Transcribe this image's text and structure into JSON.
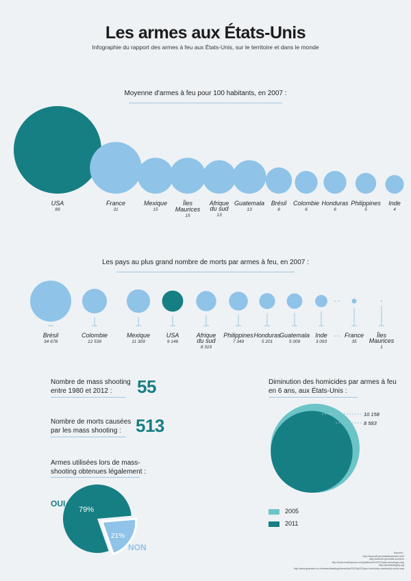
{
  "header": {
    "title": "Les armes aux États-Unis",
    "subtitle": "Infographie du rapport des armes à feu aux États-Unis, sur le territoire et dans le monde"
  },
  "colors": {
    "teal": "#167f83",
    "light_blue": "#8fc3e8",
    "light_teal": "#6cc4c7",
    "rule": "#9cc6e0"
  },
  "sources": {
    "label": "Sources :",
    "lines": [
      "http://www.atf.gov/statistics/index.html",
      "http://www.fbi.gov/stats-services",
      "http://www.motherjones.com/politics/2012/07/mass-shootings-map",
      "http://publicintegrity.org",
      "http://www.guardian.co.uk/news/datablog/interactive/2012/jul/22/gun-homicides-ownership-world-map"
    ]
  },
  "chart_data": [
    {
      "type": "bubble",
      "title": "Moyenne d'armes à feu pour 100 habitants, en 2007 :",
      "categories": [
        "USA",
        "France",
        "Mexique",
        "Îles Maurices",
        "Afrique du sud",
        "Guatemala",
        "Brésil",
        "Colombie",
        "Honduras",
        "Philippines",
        "Inde"
      ],
      "display_values": [
        "89",
        "31",
        "15",
        "15",
        "13",
        "13",
        "8",
        "6",
        "6",
        "5",
        "4"
      ],
      "values": [
        89,
        31,
        15,
        15,
        13,
        13,
        8,
        6,
        6,
        5,
        4
      ],
      "highlight": "USA"
    },
    {
      "type": "bubble",
      "title": "Les pays au plus grand nombre de morts par armes à feu, en 2007 :",
      "categories": [
        "Brésil",
        "Colombie",
        "Mexique",
        "USA",
        "Afrique du sud",
        "Philippines",
        "Honduras",
        "Guatemala",
        "Inde",
        "France",
        "Îles Maurices"
      ],
      "display_values": [
        "34 678",
        "12 539",
        "11 309",
        "9 146",
        "8 319",
        "7 349",
        "5 201",
        "5 009",
        "3 093",
        "35",
        "1"
      ],
      "values": [
        34678,
        12539,
        11309,
        9146,
        8319,
        7349,
        5201,
        5009,
        3093,
        35,
        1
      ],
      "highlight": "USA"
    },
    {
      "type": "pie",
      "title": "Armes utilisées lors de mass-shooting obtenues légalement :",
      "categories": [
        "OUI",
        "NON"
      ],
      "values": [
        79,
        21
      ],
      "display_values": [
        "79%",
        "21%"
      ]
    },
    {
      "type": "bubble",
      "title": "Diminution des homicides par armes à feu en 6 ans, aux États-Unis :",
      "series": [
        {
          "name": "2005",
          "values": [
            10158
          ]
        },
        {
          "name": "2011",
          "values": [
            8583
          ]
        }
      ],
      "display_values": [
        "10 158",
        "8 583"
      ]
    }
  ],
  "stats": {
    "mass_shooting": {
      "label": "Nombre de mass shooting entre 1980 et 2012 :",
      "value": "55"
    },
    "mass_deaths": {
      "label": "Nombre de morts causées par les mass shooting :",
      "value": "513"
    }
  }
}
